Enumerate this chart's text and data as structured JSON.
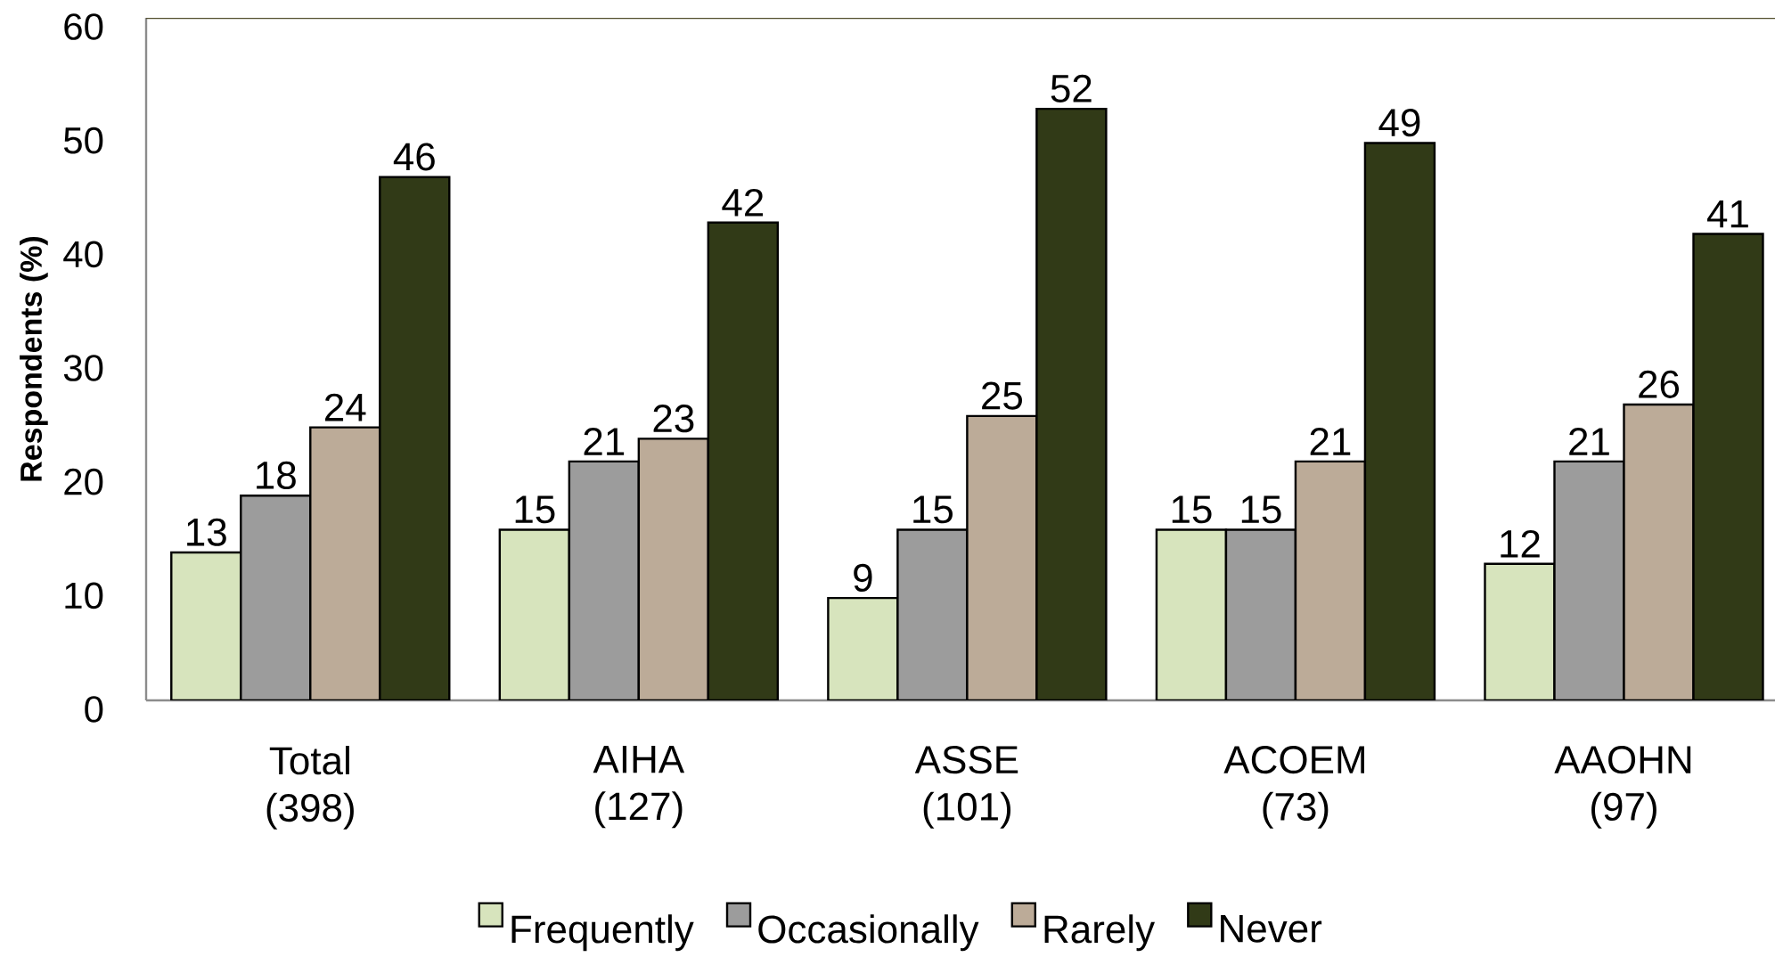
{
  "chart_data": {
    "type": "bar",
    "ylabel": "Respondents (%)",
    "categories": [
      "Total (398)",
      "AIHA (127)",
      "ASSE (101)",
      "ACOEM (73)",
      "AAOHN (97)"
    ],
    "series": [
      {
        "name": "Frequently",
        "color": "#d7e4bd",
        "values": [
          13,
          15,
          9,
          15,
          12
        ]
      },
      {
        "name": "Occasionally",
        "color": "#9c9c9c",
        "values": [
          18,
          21,
          15,
          15,
          21
        ]
      },
      {
        "name": "Rarely",
        "color": "#bcab98",
        "values": [
          24,
          23,
          25,
          21,
          26
        ]
      },
      {
        "name": "Never",
        "color": "#313a17",
        "values": [
          46,
          42,
          52,
          49,
          41
        ]
      }
    ],
    "ylim": [
      0,
      60
    ],
    "yticks": [
      0,
      10,
      20,
      30,
      40,
      50,
      60
    ],
    "data_labels": true,
    "legend": "bottom"
  }
}
